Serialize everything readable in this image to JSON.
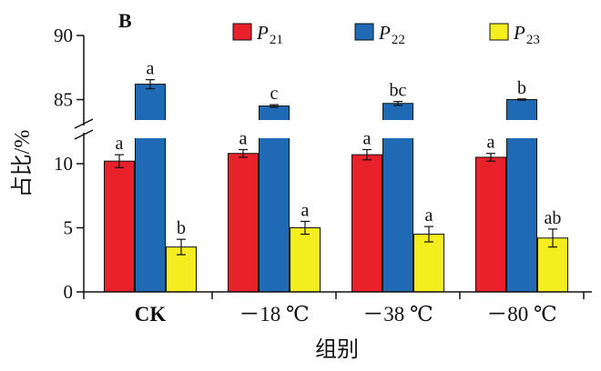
{
  "chart_data": {
    "type": "bar",
    "panel_label": "B",
    "categories": [
      "CK",
      "－18 ℃",
      "－38 ℃",
      "－80 ℃"
    ],
    "xlabel": "组别",
    "ylabel": "占比/%",
    "axis_break": {
      "lower_range": [
        0,
        12
      ],
      "upper_range": [
        84,
        90
      ]
    },
    "y_ticks_lower": [
      0,
      5,
      10
    ],
    "y_ticks_upper": [
      85,
      90
    ],
    "grid": false,
    "legend_position": "top",
    "series": [
      {
        "name_main": "P",
        "name_sub": "21",
        "color": "#e8212b",
        "values": [
          10.2,
          10.8,
          10.7,
          10.5
        ],
        "errors": [
          0.5,
          0.3,
          0.4,
          0.3
        ],
        "sig": [
          "a",
          "a",
          "a",
          "a"
        ]
      },
      {
        "name_main": "P",
        "name_sub": "22",
        "color": "#2069b4",
        "values": [
          86.2,
          84.5,
          84.7,
          85.0
        ],
        "errors": [
          0.35,
          0.1,
          0.15,
          0.05
        ],
        "sig": [
          "a",
          "c",
          "bc",
          "b"
        ]
      },
      {
        "name_main": "P",
        "name_sub": "23",
        "color": "#f5ee1e",
        "values": [
          3.5,
          5.0,
          4.5,
          4.2
        ],
        "errors": [
          0.6,
          0.5,
          0.6,
          0.7
        ],
        "sig": [
          "b",
          "a",
          "a",
          "ab"
        ]
      }
    ]
  }
}
